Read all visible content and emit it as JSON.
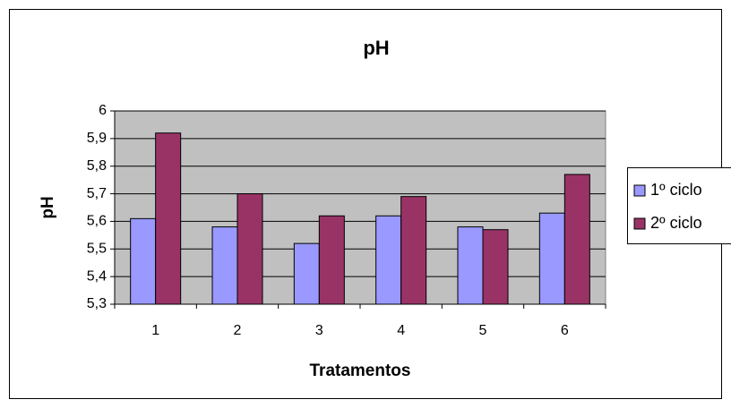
{
  "chart_data": {
    "type": "bar",
    "title": "pH",
    "x_label": "Tratamentos",
    "y_label": "pH",
    "categories": [
      "1",
      "2",
      "3",
      "4",
      "5",
      "6"
    ],
    "series": [
      {
        "name": "1º ciclo",
        "color": "#9999ff",
        "values": [
          5.61,
          5.58,
          5.52,
          5.62,
          5.58,
          5.63
        ]
      },
      {
        "name": "2º ciclo",
        "color": "#993366",
        "values": [
          5.92,
          5.7,
          5.62,
          5.69,
          5.57,
          5.77
        ]
      }
    ],
    "ylim": [
      5.3,
      6
    ],
    "yticks": [
      {
        "value": 5.3,
        "label": "5,3"
      },
      {
        "value": 5.4,
        "label": "5,4"
      },
      {
        "value": 5.5,
        "label": "5,5"
      },
      {
        "value": 5.6,
        "label": "5,6"
      },
      {
        "value": 5.7,
        "label": "5,7"
      },
      {
        "value": 5.8,
        "label": "5,8"
      },
      {
        "value": 5.9,
        "label": "5,9"
      },
      6
    ],
    "grid": true,
    "legend": "right"
  }
}
